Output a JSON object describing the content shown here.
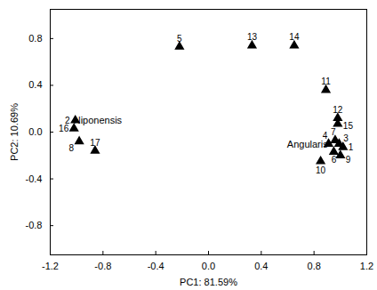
{
  "chart_data": {
    "type": "scatter",
    "x_label": "PC1: 81.59%",
    "y_label": "PC2: 10.69%",
    "labels": [
      "2",
      "16",
      "8",
      "17",
      "5",
      "13",
      "14",
      "11",
      "12",
      "15",
      "7",
      "4",
      "3",
      "1",
      "6",
      "9",
      "10"
    ],
    "x": [
      -1.01,
      -1.02,
      -0.98,
      -0.86,
      -0.22,
      0.33,
      0.65,
      0.89,
      0.98,
      0.98,
      0.96,
      0.91,
      0.99,
      1.02,
      0.95,
      1.0,
      0.85
    ],
    "y": [
      0.1,
      0.03,
      -0.08,
      -0.16,
      0.73,
      0.74,
      0.74,
      0.36,
      0.12,
      0.07,
      -0.07,
      -0.1,
      -0.1,
      -0.13,
      -0.17,
      -0.2,
      -0.25
    ],
    "annotations": [
      {
        "text": "Niponensis",
        "x": -0.84,
        "y": 0.1
      },
      {
        "text": "Angularis",
        "x": 0.75,
        "y": -0.11
      }
    ],
    "marker": "triangle",
    "color": "#000000",
    "xlim": [
      -1.2,
      1.2
    ],
    "xticks": [
      -1.2,
      -0.8,
      -0.4,
      {
        "value": 0,
        "label": "0.0"
      },
      0.4,
      0.8,
      1.2
    ],
    "ylim": [
      -1.05,
      1.05
    ],
    "yticks": [
      -0.8,
      -0.4,
      {
        "value": 0,
        "label": "0.0"
      },
      0.4,
      0.8
    ],
    "grid": false
  }
}
